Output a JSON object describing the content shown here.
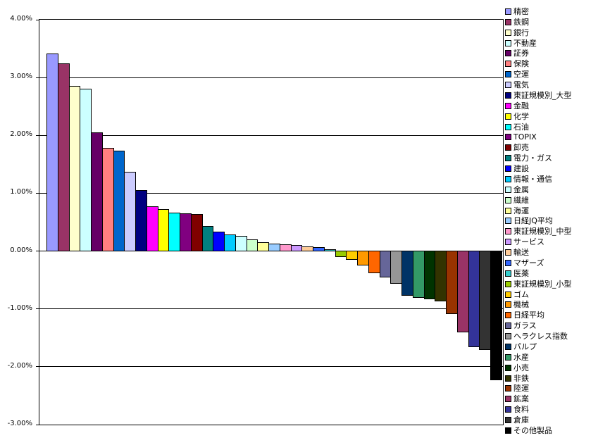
{
  "chart_data": {
    "type": "bar",
    "title": "",
    "xlabel": "",
    "ylabel": "",
    "categories": [
      "精密",
      "鉄鋼",
      "銀行",
      "不動産",
      "証券",
      "保険",
      "空運",
      "電気",
      "東証規模別_大型",
      "金融",
      "化学",
      "石油",
      "TOPIX",
      "卸売",
      "電力・ガス",
      "建設",
      "情報・通信",
      "金属",
      "繊維",
      "海運",
      "日経JQ平均",
      "東証規模別_中型",
      "サービス",
      "輸送",
      "マザーズ",
      "医薬",
      "東証規模別_小型",
      "ゴム",
      "機械",
      "日経平均",
      "ガラス",
      "ヘラクレス指数",
      "パルプ",
      "水産",
      "小売",
      "非鉄",
      "陸運",
      "鉱業",
      "食料",
      "倉庫",
      "その他製品"
    ],
    "values": [
      3.41,
      3.25,
      2.86,
      2.81,
      2.05,
      1.79,
      1.73,
      1.37,
      1.05,
      0.78,
      0.73,
      0.66,
      0.65,
      0.64,
      0.43,
      0.34,
      0.29,
      0.26,
      0.2,
      0.15,
      0.13,
      0.12,
      0.11,
      0.08,
      0.07,
      0.03,
      -0.12,
      -0.16,
      -0.26,
      -0.4,
      -0.47,
      -0.58,
      -0.79,
      -0.82,
      -0.84,
      -0.88,
      -1.1,
      -1.42,
      -1.67,
      -1.72,
      -2.24
    ],
    "colors": [
      "#9999FF",
      "#993366",
      "#FFFFCC",
      "#CCFFFF",
      "#660066",
      "#FF8080",
      "#0066CC",
      "#CCCCFF",
      "#000080",
      "#FF00FF",
      "#FFFF00",
      "#00FFFF",
      "#800080",
      "#800000",
      "#008080",
      "#0000FF",
      "#00CCFF",
      "#CCFFFF",
      "#CCFFCC",
      "#FFFF99",
      "#99CCFF",
      "#FF99CC",
      "#CC99FF",
      "#FFCC99",
      "#3366FF",
      "#33CCCC",
      "#99CC00",
      "#FFCC00",
      "#FF9900",
      "#FF6600",
      "#666699",
      "#969696",
      "#003366",
      "#339966",
      "#003300",
      "#333300",
      "#993300",
      "#993366",
      "#333399",
      "#333333",
      "#000000"
    ],
    "ylim": [
      -3,
      4
    ],
    "ytick_step": 1,
    "ytick_labels": [
      "4.00%",
      "3.00%",
      "2.00%",
      "1.00%",
      "0.00%",
      "-1.00%",
      "-2.00%",
      "-3.00%"
    ],
    "ytick_values": [
      4,
      3,
      2,
      1,
      0,
      -1,
      -2,
      -3
    ],
    "grid": true,
    "gridline_color": "#000000",
    "plot_border_color": "#000000",
    "background_color": "#FFFFFF",
    "legend_position": "right"
  }
}
